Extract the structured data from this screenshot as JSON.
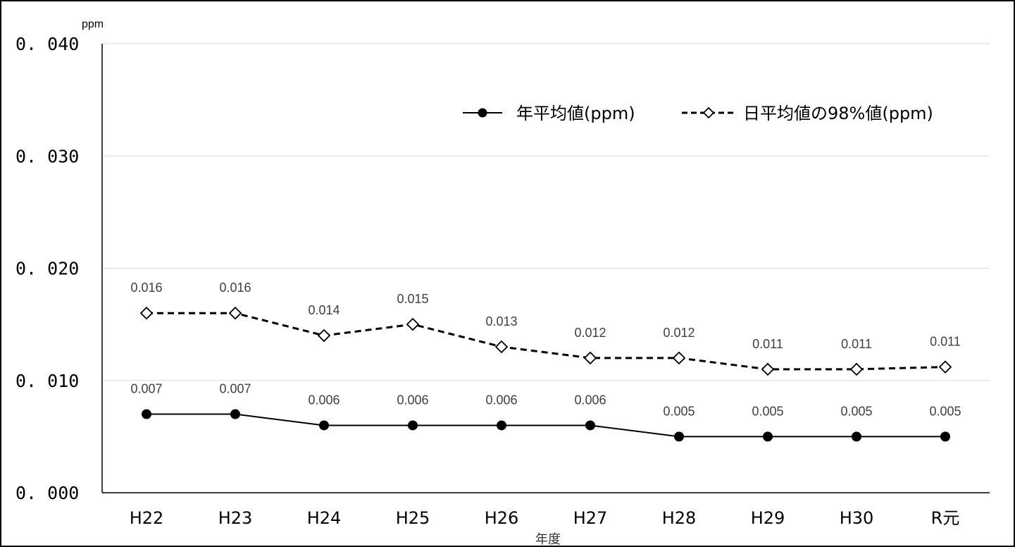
{
  "chart_data": {
    "type": "line",
    "title": "",
    "xlabel": "年度",
    "ylabel": "",
    "y_unit": "ppm",
    "ylim": [
      0,
      0.04
    ],
    "y_ticks": [
      "0.000",
      "0.010",
      "0.020",
      "0.030",
      "0.040"
    ],
    "y_tick_values": [
      0,
      0.01,
      0.02,
      0.03,
      0.04
    ],
    "grid": true,
    "legend_position": "top-right",
    "categories": [
      "H22",
      "H23",
      "H24",
      "H25",
      "H26",
      "H27",
      "H28",
      "H29",
      "H30",
      "R元"
    ],
    "series": [
      {
        "name": "年平均値(ppm)",
        "values": [
          0.007,
          0.007,
          0.006,
          0.006,
          0.006,
          0.006,
          0.005,
          0.005,
          0.005,
          0.005
        ],
        "labels": [
          "0.007",
          "0.007",
          "0.006",
          "0.006",
          "0.006",
          "0.006",
          "0.005",
          "0.005",
          "0.005",
          "0.005"
        ],
        "line_style": "solid",
        "marker": "filled-circle",
        "color": "#000000"
      },
      {
        "name": "日平均値の98%値(ppm)",
        "values": [
          0.016,
          0.016,
          0.014,
          0.015,
          0.013,
          0.012,
          0.012,
          0.011,
          0.011,
          0.0112
        ],
        "labels": [
          "0.016",
          "0.016",
          "0.014",
          "0.015",
          "0.013",
          "0.012",
          "0.012",
          "0.011",
          "0.011",
          "0.011"
        ],
        "line_style": "dashed",
        "marker": "open-diamond",
        "color": "#000000"
      }
    ]
  }
}
